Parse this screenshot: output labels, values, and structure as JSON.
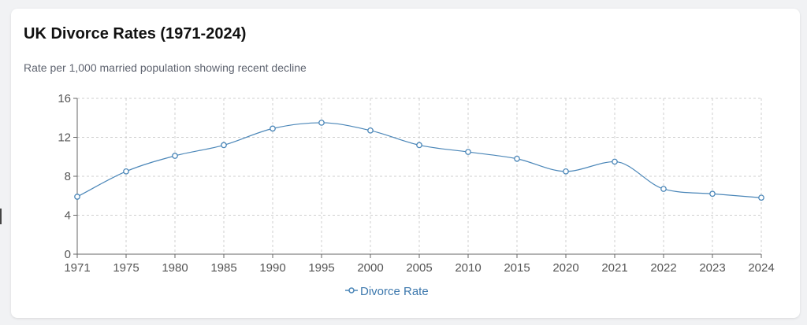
{
  "card": {
    "title": "UK Divorce Rates (1971-2024)",
    "subtitle": "Rate per 1,000 married population showing recent decline"
  },
  "colors": {
    "line": "#4a86b8",
    "grid": "#cfcfcf",
    "axis": "#666666",
    "legend_text": "#3d78ad"
  },
  "chart_data": {
    "type": "line",
    "categories": [
      "1971",
      "1975",
      "1980",
      "1985",
      "1990",
      "1995",
      "2000",
      "2005",
      "2010",
      "2015",
      "2020",
      "2021",
      "2022",
      "2023",
      "2024"
    ],
    "series": [
      {
        "name": "Divorce Rate",
        "values": [
          5.9,
          8.5,
          10.1,
          11.2,
          12.9,
          13.5,
          12.7,
          11.2,
          10.5,
          9.8,
          8.5,
          9.5,
          6.7,
          6.2,
          5.8
        ]
      }
    ],
    "yticks": [
      "0",
      "4",
      "8",
      "12",
      "16"
    ],
    "ylim": [
      0,
      16
    ],
    "grid": true,
    "legend": "bottom-center",
    "smooth": true
  }
}
